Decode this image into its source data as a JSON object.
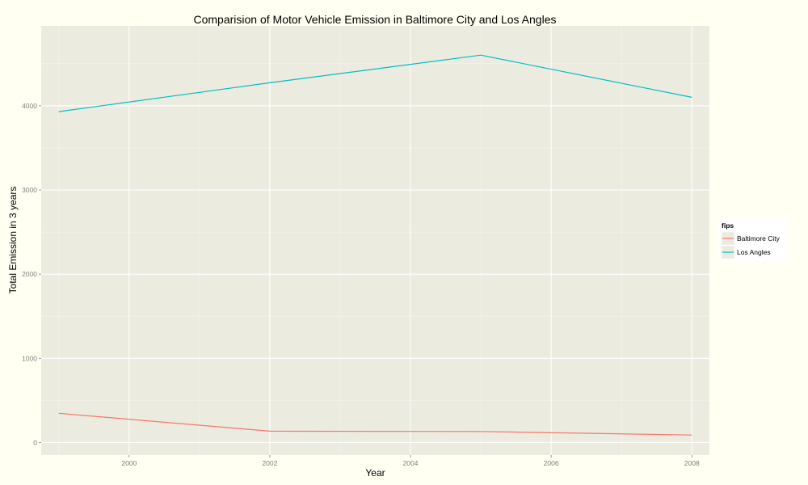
{
  "chart_data": {
    "type": "line",
    "title": "Comparision of Motor Vehicle Emission in Baltimore City and Los Angles",
    "xlabel": "Year",
    "ylabel": "Total Emission in 3 years",
    "x": [
      1999,
      2002,
      2005,
      2008
    ],
    "xticks": [
      2000,
      2002,
      2004,
      2006,
      2008
    ],
    "xtick_labels": [
      "2000",
      "2002",
      "2004",
      "2006",
      "2008"
    ],
    "yticks": [
      0,
      1000,
      2000,
      3000,
      4000
    ],
    "ytick_labels": [
      "0",
      "1000",
      "2000",
      "3000",
      "4000"
    ],
    "xlim": [
      1998.75,
      2008.25
    ],
    "ylim": [
      -150,
      4950
    ],
    "grid": true,
    "legend": {
      "title": "fips",
      "placement": "right"
    },
    "series": [
      {
        "name": "Baltimore City",
        "values": [
          346.8,
          134.3,
          130.4,
          88.3
        ],
        "color": "#f8766d"
      },
      {
        "name": "Los Angles",
        "values": [
          3931,
          4274,
          4602,
          4101
        ],
        "color": "#00bfc4"
      }
    ]
  },
  "colors": {
    "page_background": "#fffff2",
    "panel_background": "#ebebe0",
    "grid_major": "#ffffff",
    "grid_minor": "#f4f4ee"
  }
}
